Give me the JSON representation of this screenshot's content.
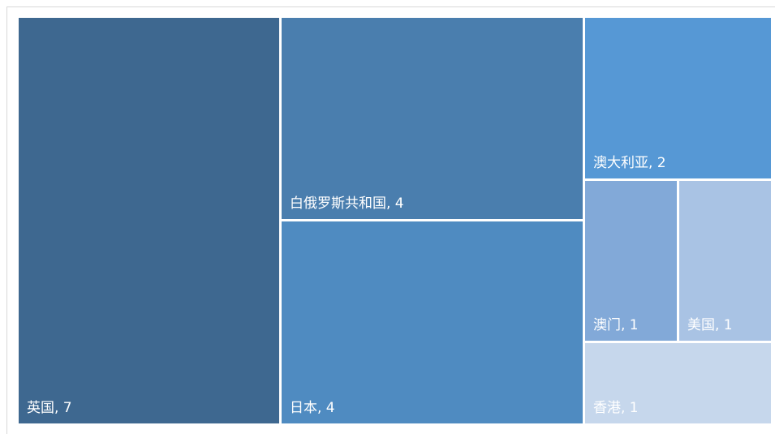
{
  "chart_data": {
    "type": "treemap",
    "items": [
      {
        "name": "英国",
        "value": 7,
        "label": "英国, 7",
        "color": "#3e6890"
      },
      {
        "name": "白俄罗斯共和国",
        "value": 4,
        "label": "白俄罗斯共和国, 4",
        "color": "#4a7eae"
      },
      {
        "name": "日本",
        "value": 4,
        "label": "日本, 4",
        "color": "#4f8bc1"
      },
      {
        "name": "澳大利亚",
        "value": 2,
        "label": "澳大利亚, 2",
        "color": "#5698d5"
      },
      {
        "name": "澳门",
        "value": 1,
        "label": "澳门, 1",
        "color": "#82a9d8"
      },
      {
        "name": "美国",
        "value": 1,
        "label": "美国, 1",
        "color": "#a9c3e4"
      },
      {
        "name": "香港",
        "value": 1,
        "label": "香港, 1",
        "color": "#c6d7ec"
      }
    ]
  }
}
